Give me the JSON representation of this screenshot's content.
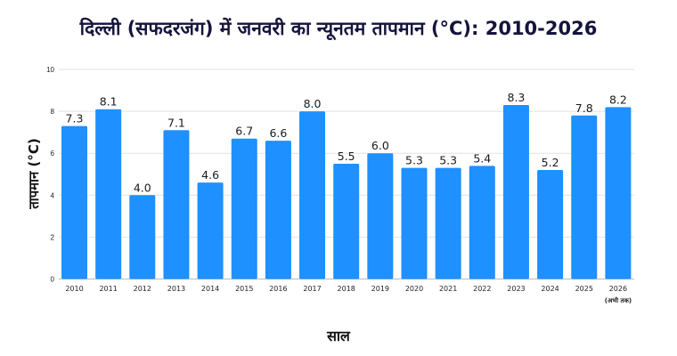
{
  "chart_data": {
    "type": "bar",
    "title": "दिल्ली (सफदरजंग) में जनवरी का न्यूनतम तापमान (°C): 2010-2026",
    "xlabel": "साल",
    "ylabel": "तापमान (°C)",
    "categories": [
      "2010",
      "2011",
      "2012",
      "2013",
      "2014",
      "2015",
      "2016",
      "2017",
      "2018",
      "2019",
      "2020",
      "2021",
      "2022",
      "2023",
      "2024",
      "2025",
      "2026"
    ],
    "category_notes": {
      "2026": "(अभी तक)"
    },
    "values": [
      7.3,
      8.1,
      4.0,
      7.1,
      4.6,
      6.7,
      6.6,
      8.0,
      5.5,
      6.0,
      5.3,
      5.3,
      5.4,
      8.3,
      5.2,
      7.8,
      8.2
    ],
    "ylim": [
      0,
      10
    ],
    "yticks": [
      0,
      2,
      4,
      6,
      8,
      10
    ],
    "grid": true,
    "bar_color": "#1e90ff"
  }
}
